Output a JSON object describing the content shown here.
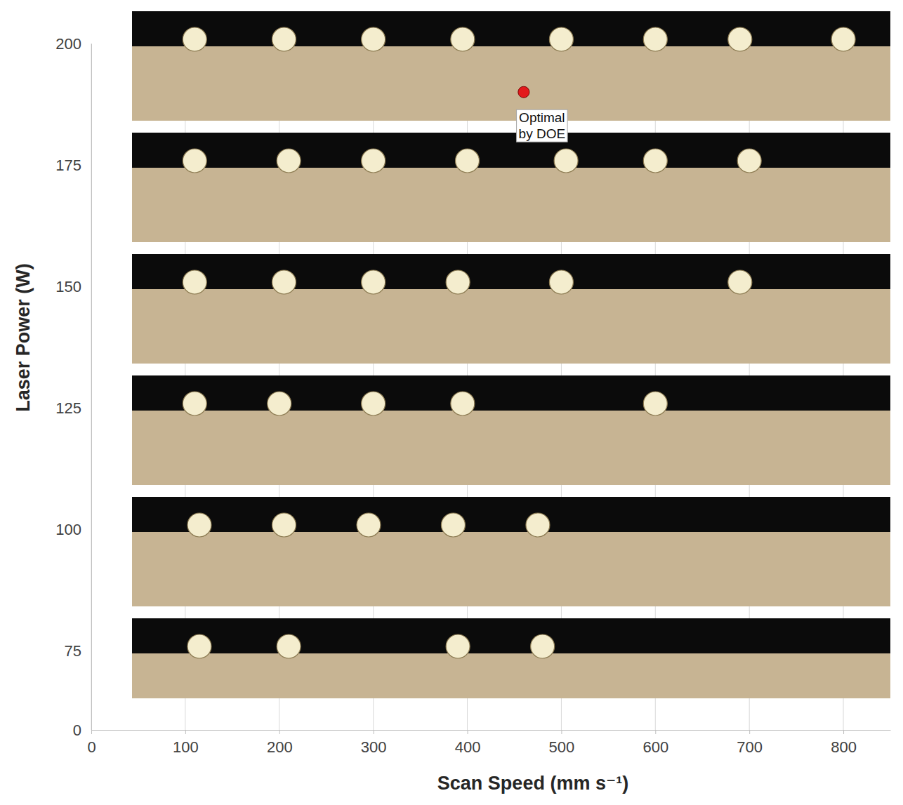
{
  "chart_data": {
    "type": "scatter",
    "x_label": "Scan Speed (mm s⁻¹)",
    "y_label": "Laser Power (W)",
    "xlim": [
      0,
      850
    ],
    "ylim": [
      0,
      200
    ],
    "xticks": [
      0,
      100,
      200,
      300,
      400,
      500,
      600,
      700,
      800
    ],
    "yticks": [
      0,
      75,
      100,
      125,
      150,
      175,
      200
    ],
    "grid": true,
    "series": [
      {
        "color": "#f4edce",
        "marker": "circle",
        "x": [
          110,
          205,
          300,
          395,
          500,
          600,
          690,
          800,
          110,
          210,
          300,
          400,
          505,
          600,
          700,
          110,
          205,
          300,
          390,
          500,
          690,
          110,
          200,
          300,
          395,
          600,
          115,
          205,
          295,
          385,
          475,
          115,
          210,
          390,
          480
        ],
        "values": [
          200,
          200,
          200,
          200,
          200,
          200,
          200,
          200,
          175,
          175,
          175,
          175,
          175,
          175,
          175,
          150,
          150,
          150,
          150,
          150,
          150,
          125,
          125,
          125,
          125,
          125,
          100,
          100,
          100,
          100,
          100,
          75,
          75,
          75,
          75
        ]
      }
    ],
    "annotations": [
      {
        "text": "Optimal by DOE",
        "x": 460,
        "y": 190,
        "color": "#e31a1c",
        "marker": "circle"
      }
    ]
  }
}
